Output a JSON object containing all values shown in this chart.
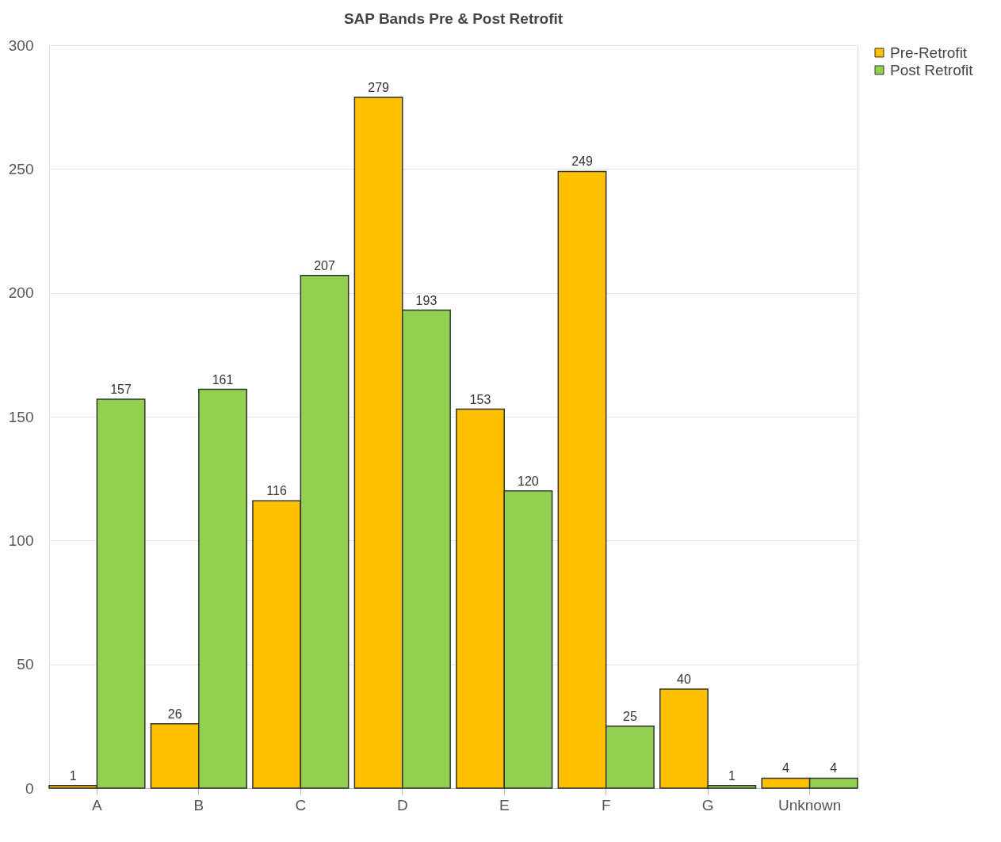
{
  "chart_data": {
    "type": "bar",
    "title": "SAP Bands Pre & Post Retrofit",
    "categories": [
      "A",
      "B",
      "C",
      "D",
      "E",
      "F",
      "G",
      "Unknown"
    ],
    "series": [
      {
        "name": "Pre-Retrofit",
        "color": "#ffc000",
        "values": [
          1,
          26,
          116,
          279,
          153,
          249,
          40,
          4
        ]
      },
      {
        "name": "Post Retrofit",
        "color": "#92d050",
        "values": [
          157,
          161,
          207,
          193,
          120,
          25,
          1,
          4
        ]
      }
    ],
    "ylim": [
      0,
      300
    ],
    "yticks": [
      0,
      50,
      100,
      150,
      200,
      250,
      300
    ],
    "grid": "y",
    "legend": "right",
    "data_labels": true
  }
}
